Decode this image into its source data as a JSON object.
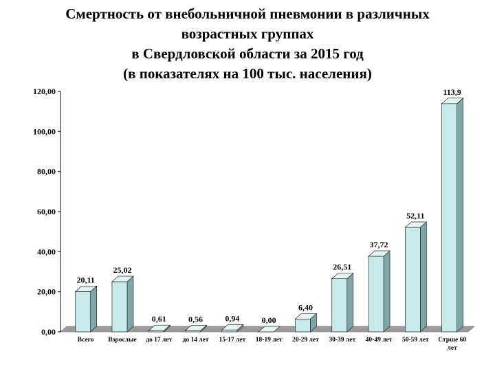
{
  "title_lines": [
    "Смертность от внебольничной пневмонии в различных",
    "возрастных группах",
    "в Свердловской области за 2015 год",
    "(в показателях на 100 тыс. населения)"
  ],
  "chart_data": {
    "type": "bar",
    "title": "Смертность от внебольничной пневмонии в различных возрастных группах в Свердловской области за 2015 год (в показателях на 100 тыс. населения)",
    "categories": [
      "Всего",
      "Взрослые",
      "до 17 лет",
      "до 14 лет",
      "15-17 лет",
      "18-19 лет",
      "20-29 лет",
      "30-39 лет",
      "40-49 лет",
      "50-59 лет",
      "Стрше 60 лет"
    ],
    "values": [
      20.11,
      25.02,
      0.61,
      0.56,
      0.94,
      0.0,
      6.4,
      26.51,
      37.72,
      52.11,
      113.9
    ],
    "data_labels": [
      "20,11",
      "25,02",
      "0,61",
      "0,56",
      "0,94",
      "0,00",
      "6,40",
      "26,51",
      "37,72",
      "52,11",
      "113,9"
    ],
    "yticks": [
      "0,00",
      "20,00",
      "40,00",
      "60,00",
      "80,00",
      "100,00",
      "120,00"
    ],
    "ylim": [
      0,
      120
    ],
    "grid": false,
    "legend": "none",
    "colors": {
      "bar_face": "#c8e8ea",
      "bar_side": "#7fa6a8",
      "bar_top": "#e4f4f5",
      "bar_stroke": "#2a2a2a",
      "floor": "#9a9a9a",
      "axis": "#000000"
    }
  }
}
